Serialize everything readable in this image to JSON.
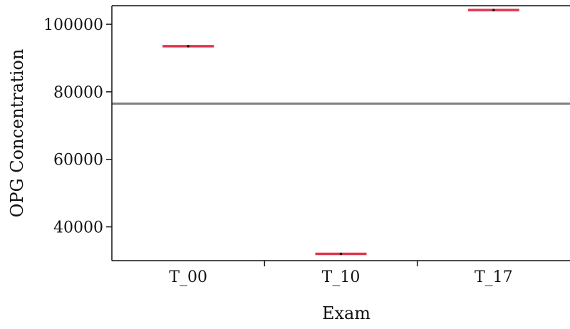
{
  "chart_data": {
    "type": "scatter",
    "title": "",
    "xlabel": "Exam",
    "ylabel": "OPG Concentration",
    "categories": [
      "T_00",
      "T_10",
      "T_17"
    ],
    "values": [
      93500,
      32000,
      104200
    ],
    "reference_line": 76500,
    "ylim": [
      30000,
      105500
    ],
    "yticks": [
      40000,
      60000,
      80000,
      100000
    ],
    "grid": false,
    "legend": "none"
  },
  "colors": {
    "marker": "#e0364f",
    "reference_line": "#808080",
    "axis": "#111111",
    "point": "#111111"
  }
}
